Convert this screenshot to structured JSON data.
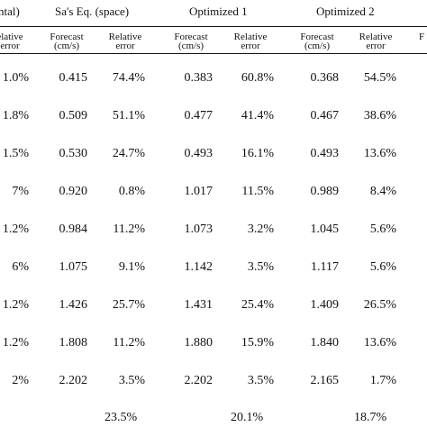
{
  "table": {
    "group_headers": [
      {
        "key": "exp",
        "text": "ntal)"
      },
      {
        "key": "sa",
        "text": "Sa's Eq. (space)"
      },
      {
        "key": "o1",
        "text": "Optimized 1"
      },
      {
        "key": "o2",
        "text": "Optimized 2"
      }
    ],
    "sub_headers": [
      {
        "line1": "elative",
        "line2": "error"
      },
      {
        "line1": "Forecast",
        "line2": "(cm/s)"
      },
      {
        "line1": "Relative",
        "line2": "error"
      },
      {
        "line1": "Forecast",
        "line2": "(cm/s)"
      },
      {
        "line1": "Relative",
        "line2": "error"
      },
      {
        "line1": "Forecast",
        "line2": "(cm/s)"
      },
      {
        "line1": "Relative",
        "line2": "error"
      },
      {
        "line1": "F",
        "line2": ""
      }
    ],
    "rows": [
      [
        "1.0%",
        "0.415",
        "74.4%",
        "0.383",
        "60.8%",
        "0.368",
        "54.5%"
      ],
      [
        "1.8%",
        "0.509",
        "51.1%",
        "0.477",
        "41.4%",
        "0.467",
        "38.6%"
      ],
      [
        "1.5%",
        "0.530",
        "24.7%",
        "0.493",
        "16.1%",
        "0.493",
        "13.6%"
      ],
      [
        "7%",
        "0.920",
        "0.8%",
        "1.017",
        "11.5%",
        "0.989",
        "8.4%"
      ],
      [
        "1.2%",
        "0.984",
        "11.2%",
        "1.073",
        "3.2%",
        "1.045",
        "5.6%"
      ],
      [
        "6%",
        "1.075",
        "9.1%",
        "1.142",
        "3.5%",
        "1.117",
        "5.6%"
      ],
      [
        "1.2%",
        "1.426",
        "25.7%",
        "1.431",
        "25.4%",
        "1.409",
        "26.5%"
      ],
      [
        "1.2%",
        "1.808",
        "11.2%",
        "1.880",
        "15.9%",
        "1.840",
        "13.6%"
      ],
      [
        "2%",
        "2.202",
        "3.5%",
        "2.202",
        "3.5%",
        "2.165",
        "1.7%"
      ]
    ],
    "averages": [
      "23.5%",
      "20.1%",
      "18.7%"
    ]
  }
}
